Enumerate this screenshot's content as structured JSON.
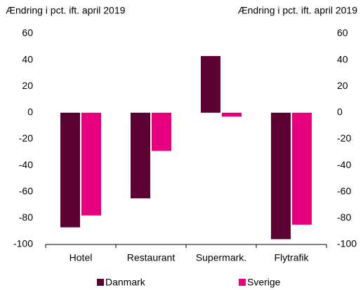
{
  "chart_data": {
    "type": "bar",
    "y_label": "Ændring i pct. ift. april 2019",
    "y2_label": "Ændring i pct. ift. april 2019",
    "categories": [
      "Hotel",
      "Restaurant",
      "Supermark.",
      "Flytrafik"
    ],
    "series": [
      {
        "name": "Danmark",
        "color": "#5c0032",
        "values": [
          -87,
          -65,
          43,
          -96
        ]
      },
      {
        "name": "Sverige",
        "color": "#e6007e",
        "values": [
          -78,
          -29,
          -3,
          -85
        ]
      }
    ],
    "ylim": [
      -100,
      60
    ],
    "yticks": [
      -100,
      -80,
      -60,
      -40,
      -20,
      0,
      20,
      40,
      60
    ],
    "y2lim": [
      -100,
      60
    ],
    "y2ticks": [
      -100,
      -80,
      -60,
      -40,
      -20,
      0,
      20,
      40,
      60
    ],
    "legend": "bottom"
  }
}
